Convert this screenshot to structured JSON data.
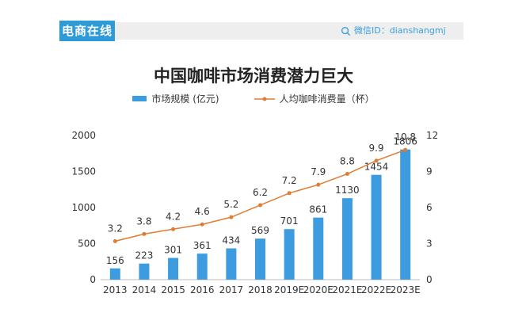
{
  "brand": {
    "tag": "电商在线",
    "wechat": "微信ID：dianshangmj"
  },
  "colors": {
    "bar": "#3d9be0",
    "line": "#e07c33",
    "brand": "#2d9bd7"
  },
  "chart_data": {
    "type": "bar",
    "title": "中国咖啡市场消费潜力巨大",
    "categories": [
      "2013",
      "2014",
      "2015",
      "2016",
      "2017",
      "2018",
      "2019E",
      "2020E",
      "2021E",
      "2022E",
      "2023E"
    ],
    "series": [
      {
        "name": "市场规模 (亿元)",
        "type": "bar",
        "axis": "left",
        "values": [
          156,
          223,
          301,
          361,
          434,
          569,
          701,
          861,
          1130,
          1454,
          1806
        ]
      },
      {
        "name": "人均咖啡消费量（杯）",
        "type": "line",
        "axis": "right",
        "values": [
          3.2,
          3.8,
          4.2,
          4.6,
          5.2,
          6.2,
          7.2,
          7.9,
          8.8,
          9.9,
          10.8
        ]
      }
    ],
    "y_left": {
      "ticks": [
        0,
        500,
        1000,
        1500,
        2000
      ],
      "ylim": [
        0,
        2000
      ]
    },
    "y_right": {
      "ticks": [
        0,
        3,
        6,
        9,
        12
      ],
      "ylim": [
        0,
        12
      ]
    },
    "legend": "top-center"
  }
}
